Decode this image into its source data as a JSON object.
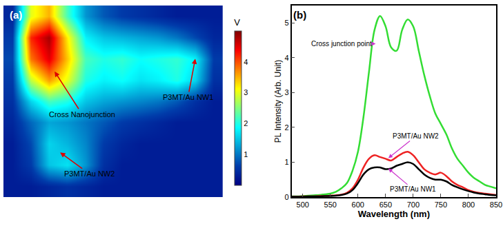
{
  "chart_data": [
    {
      "type": "heatmap",
      "title": "(a)",
      "colorbar_title": "V",
      "zlim": [
        0,
        5
      ],
      "zticks": [
        1,
        2,
        3,
        4
      ],
      "tick_labels": false,
      "annotations": [
        "Cross Nanojunction",
        "P3MT/Au NW1",
        "P3MT/Au NW2"
      ],
      "cells": [
        [
          0.3,
          0.3,
          0.4,
          0.5,
          0.4,
          0.3,
          0.3,
          0.3,
          0.3,
          0.3,
          0.3,
          0.3
        ],
        [
          0.3,
          0.6,
          1.5,
          1.7,
          1.2,
          0.5,
          0.3,
          0.3,
          0.3,
          0.3,
          0.3,
          0.3
        ],
        [
          0.3,
          0.7,
          1.6,
          1.4,
          1.1,
          0.6,
          0.4,
          0.3,
          0.3,
          0.3,
          0.3,
          0.3
        ],
        [
          0.4,
          0.9,
          1.3,
          1.2,
          1.0,
          0.8,
          0.6,
          0.5,
          0.4,
          0.3,
          0.3,
          0.3
        ],
        [
          0.5,
          1.6,
          2.2,
          2.0,
          1.5,
          1.3,
          1.2,
          1.1,
          1.0,
          0.8,
          0.5,
          0.3
        ],
        [
          0.6,
          2.8,
          3.6,
          3.0,
          2.0,
          1.8,
          1.9,
          1.7,
          1.8,
          2.0,
          1.6,
          0.5
        ],
        [
          0.7,
          3.8,
          4.5,
          3.4,
          2.2,
          2.0,
          2.1,
          1.9,
          2.0,
          2.1,
          1.8,
          0.6
        ],
        [
          0.6,
          4.2,
          4.8,
          3.2,
          1.8,
          1.5,
          1.4,
          1.3,
          1.2,
          1.0,
          0.7,
          0.4
        ],
        [
          0.4,
          3.0,
          3.5,
          2.2,
          1.2,
          0.8,
          0.6,
          0.5,
          0.4,
          0.3,
          0.3,
          0.3
        ]
      ]
    },
    {
      "type": "line",
      "title": "(b)",
      "x_label": "Wavelength (nm)",
      "y_label": "PL Intensity (Arb. Unit)",
      "xlim": [
        480,
        850
      ],
      "xticks": [
        500,
        550,
        600,
        650,
        700,
        750,
        800,
        850
      ],
      "ylim": [
        0,
        5.5
      ],
      "yticks": [
        0,
        1,
        2,
        3,
        4,
        5
      ],
      "grid": false,
      "x": [
        480,
        490,
        500,
        510,
        520,
        530,
        540,
        550,
        560,
        570,
        580,
        590,
        600,
        610,
        620,
        630,
        640,
        650,
        660,
        670,
        680,
        690,
        700,
        710,
        720,
        730,
        740,
        750,
        760,
        770,
        780,
        790,
        800,
        810,
        820,
        830,
        840,
        850
      ],
      "series": [
        {
          "name": "Cross junction point",
          "color": "#33dd33",
          "values": [
            0.02,
            0.02,
            0.03,
            0.04,
            0.05,
            0.06,
            0.08,
            0.1,
            0.15,
            0.25,
            0.4,
            0.75,
            1.3,
            2.3,
            3.6,
            4.8,
            5.2,
            4.9,
            4.3,
            4.2,
            4.8,
            5.1,
            4.9,
            4.2,
            3.5,
            2.9,
            2.4,
            2.1,
            1.8,
            1.4,
            1.1,
            0.9,
            0.7,
            0.55,
            0.45,
            0.35,
            0.3,
            0.25
          ]
        },
        {
          "name": "P3MT/Au NW2",
          "color": "#ee2222",
          "values": [
            0.01,
            0.01,
            0.02,
            0.02,
            0.02,
            0.03,
            0.03,
            0.04,
            0.05,
            0.07,
            0.12,
            0.25,
            0.5,
            0.85,
            1.1,
            1.2,
            1.15,
            1.1,
            1.05,
            1.15,
            1.25,
            1.3,
            1.2,
            1.0,
            0.8,
            0.7,
            0.65,
            0.7,
            0.6,
            0.45,
            0.35,
            0.28,
            0.2,
            0.15,
            0.12,
            0.1,
            0.08,
            0.06
          ]
        },
        {
          "name": "P3MT/Au NW1",
          "color": "#000000",
          "values": [
            0.01,
            0.01,
            0.01,
            0.02,
            0.02,
            0.02,
            0.03,
            0.03,
            0.04,
            0.06,
            0.1,
            0.2,
            0.4,
            0.65,
            0.8,
            0.85,
            0.85,
            0.8,
            0.82,
            0.9,
            0.95,
            1.0,
            0.95,
            0.8,
            0.65,
            0.55,
            0.5,
            0.5,
            0.45,
            0.35,
            0.28,
            0.22,
            0.17,
            0.13,
            0.1,
            0.08,
            0.06,
            0.05
          ]
        }
      ]
    }
  ]
}
